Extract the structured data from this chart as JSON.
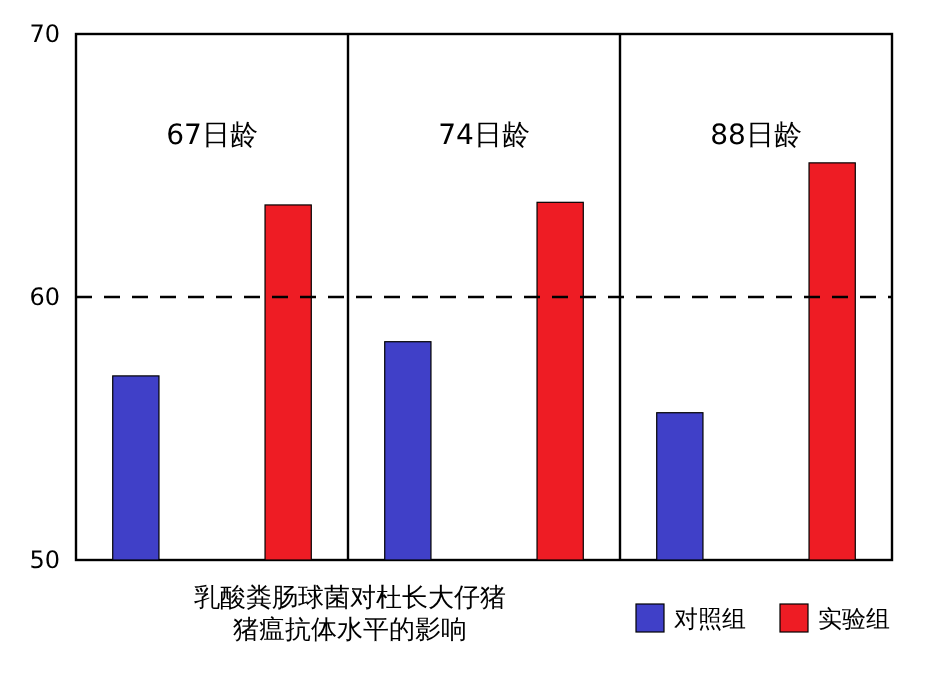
{
  "chart_data": {
    "type": "bar",
    "title": "乳酸粪肠球菌对杜长大仔猪猪瘟抗体水平的影响",
    "categories": [
      "67日龄",
      "74日龄",
      "88日龄"
    ],
    "series": [
      {
        "name": "对照组",
        "color": "#4040c8",
        "values": [
          57.0,
          58.3,
          55.6
        ]
      },
      {
        "name": "实验组",
        "color": "#ee1c24",
        "values": [
          63.5,
          63.6,
          65.1
        ]
      }
    ],
    "ylim": [
      50,
      70
    ],
    "yticks": [
      50,
      60,
      70
    ],
    "grid": "x",
    "legend": "bottom right",
    "ref_lines": [
      {
        "axis": "y",
        "value": 60,
        "line_style": "dashed",
        "color": "#000000"
      }
    ]
  }
}
